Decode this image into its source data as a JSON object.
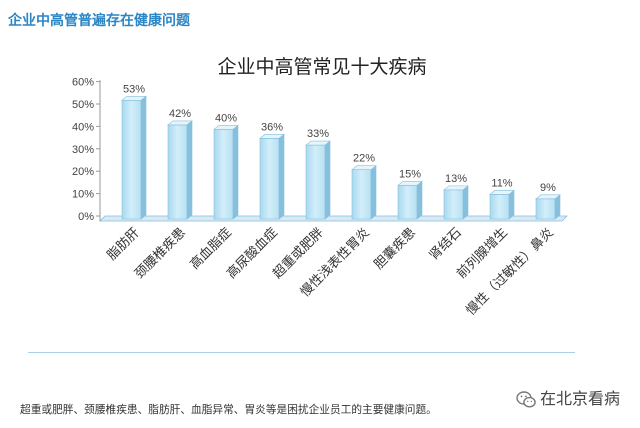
{
  "header": {
    "title": "企业中高管普遍存在健康问题"
  },
  "chart_data": {
    "type": "bar",
    "title": "企业中高管常见十大疾病",
    "categories": [
      "脂肪肝",
      "颈腰椎疾患",
      "高血脂症",
      "高尿酸血症",
      "超重或肥胖",
      "慢性浅表性胃炎",
      "胆囊疾患",
      "肾结石",
      "前列腺增生",
      "慢性（过敏性）鼻炎"
    ],
    "values": [
      53,
      42,
      40,
      36,
      33,
      22,
      15,
      13,
      11,
      9
    ],
    "data_labels": [
      "53%",
      "42%",
      "40%",
      "36%",
      "33%",
      "22%",
      "15%",
      "13%",
      "11%",
      "9%"
    ],
    "y_ticks": [
      0,
      10,
      20,
      30,
      40,
      50,
      60
    ],
    "y_tick_labels": [
      "0%",
      "10%",
      "20%",
      "30%",
      "40%",
      "50%",
      "60%"
    ],
    "ylim": [
      0,
      60
    ],
    "grid": false,
    "legend": "none"
  },
  "footer": {
    "note": "超重或肥胖、颈腰椎疾患、脂肪肝、血脂异常、胃炎等是困扰企业员工的主要健康问题。"
  },
  "watermark": {
    "icon": "wechat-icon",
    "text": "在北京看病"
  },
  "colors": {
    "header": "#2b86c5",
    "bar_front": "#d2eefa",
    "bar_side": "#86c0dc",
    "bar_top": "#e6f5fc",
    "bar_stroke": "#86bfdc",
    "floor": "#d8ebf4",
    "rule": "#a9d0e6"
  }
}
